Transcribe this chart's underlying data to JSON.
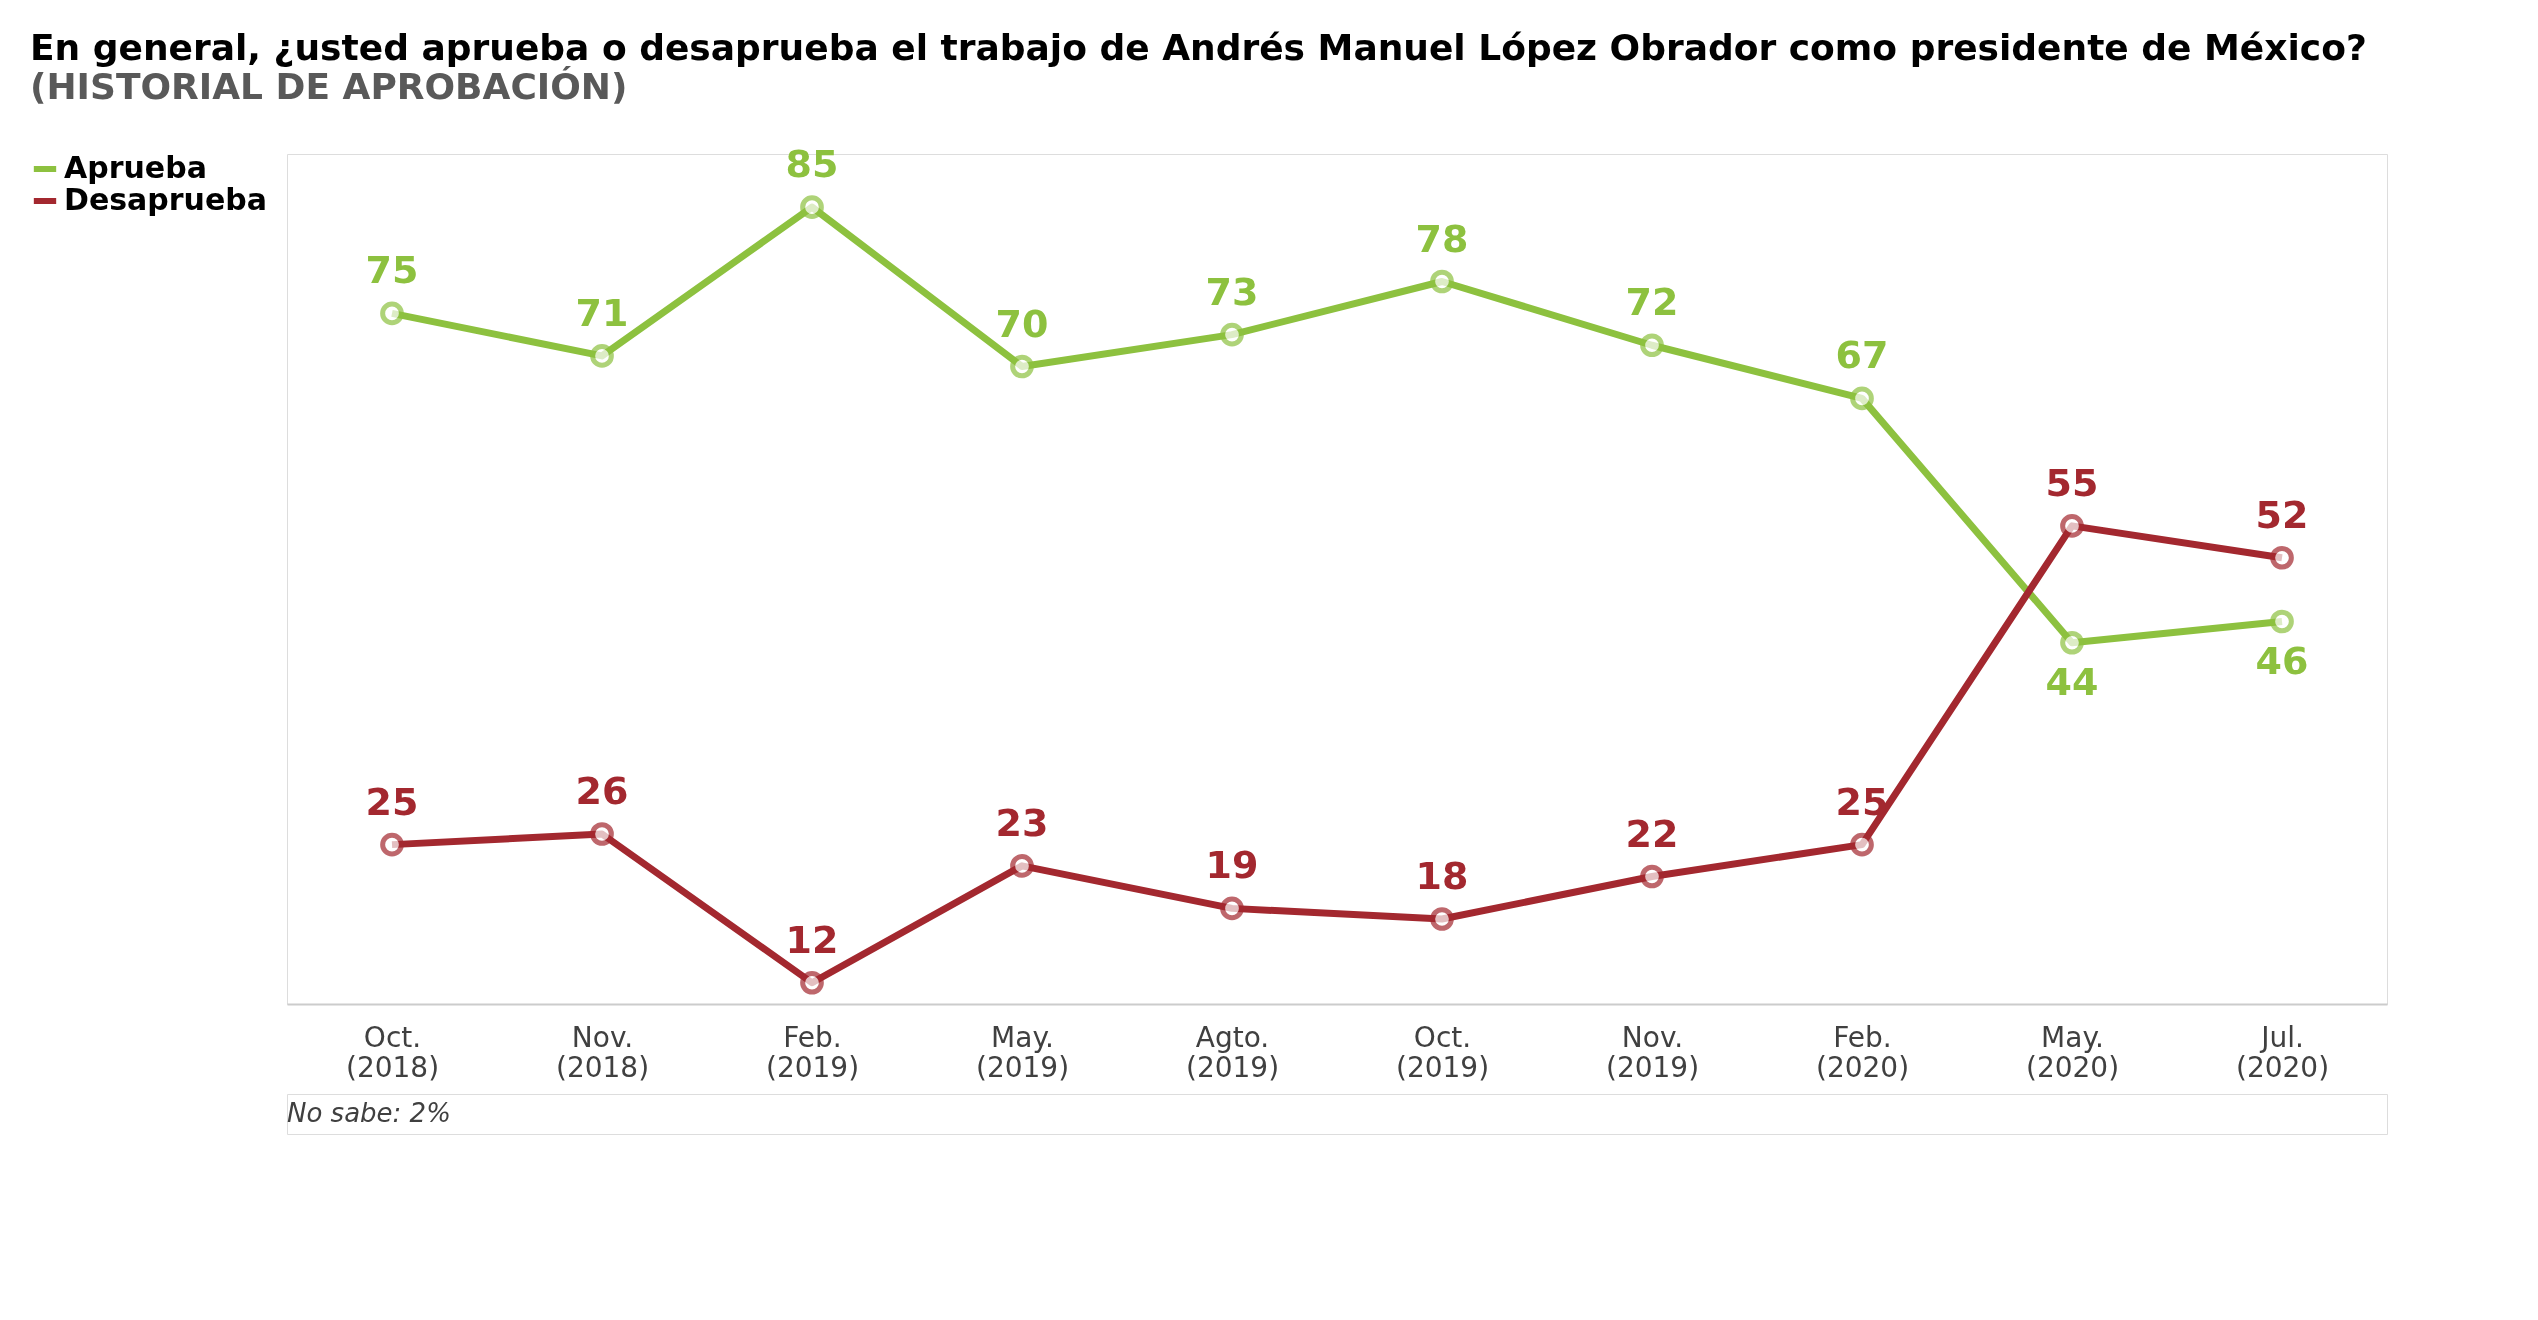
{
  "chart_data": {
    "type": "line",
    "title": "En general, ¿usted aprueba o desaprueba el trabajo de Andrés Manuel López Obrador como presidente de México?",
    "subtitle": "(HISTORIAL DE APROBACIÓN)",
    "categories": [
      "Oct. (2018)",
      "Nov. (2018)",
      "Feb. (2019)",
      "May. (2019)",
      "Agto. (2019)",
      "Oct. (2019)",
      "Nov. (2019)",
      "Feb. (2020)",
      "May. (2020)",
      "Jul. (2020)"
    ],
    "series": [
      {
        "name": "Aprueba",
        "color": "#8dc13f",
        "values": [
          75,
          71,
          85,
          70,
          73,
          78,
          72,
          67,
          44,
          46
        ]
      },
      {
        "name": "Desaprueba",
        "color": "#a3282f",
        "values": [
          25,
          26,
          12,
          23,
          19,
          18,
          22,
          25,
          55,
          52
        ]
      }
    ],
    "data_labels": true,
    "marker": "circle",
    "line_style": "solid",
    "grid": false,
    "legend": "left",
    "annotations": [
      "No sabe: 2%"
    ]
  }
}
